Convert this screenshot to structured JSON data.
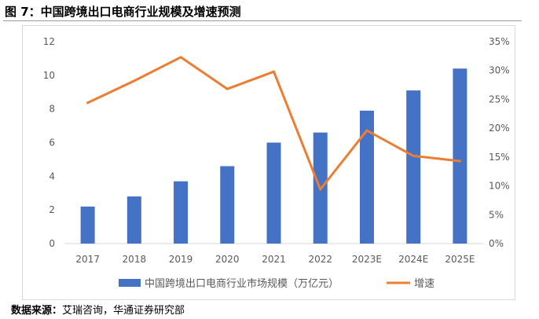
{
  "header": {
    "title": "图 7：中国跨境出口电商行业规模及增速预测"
  },
  "footer": {
    "source_label": "数据来源：",
    "source_text": "艾瑞咨询，华通证券研究部"
  },
  "chart_data": {
    "type": "bar",
    "title": "",
    "categories": [
      "2017",
      "2018",
      "2019",
      "2020",
      "2021",
      "2022",
      "2023E",
      "2024E",
      "2025E"
    ],
    "series": [
      {
        "name": "中国跨境出口电商行业市场规模（万亿元）",
        "type": "bar",
        "axis": "left",
        "color": "#4472C4",
        "values": [
          2.2,
          2.8,
          3.7,
          4.6,
          6.0,
          6.6,
          7.9,
          9.1,
          10.4
        ]
      },
      {
        "name": "增速",
        "type": "line",
        "axis": "right",
        "color": "#ED7D31",
        "values": [
          24.4,
          28.2,
          32.3,
          26.8,
          29.8,
          9.4,
          19.6,
          15.2,
          14.3
        ]
      }
    ],
    "y_left": {
      "ylim": [
        0,
        12
      ],
      "ticks": [
        "0",
        "2",
        "4",
        "6",
        "8",
        "10",
        "12"
      ]
    },
    "y_right": {
      "ylim": [
        0,
        35
      ],
      "ticks": [
        "0%",
        "5%",
        "10%",
        "15%",
        "20%",
        "25%",
        "30%",
        "35%"
      ]
    },
    "grid": false,
    "legend_position": "bottom"
  }
}
